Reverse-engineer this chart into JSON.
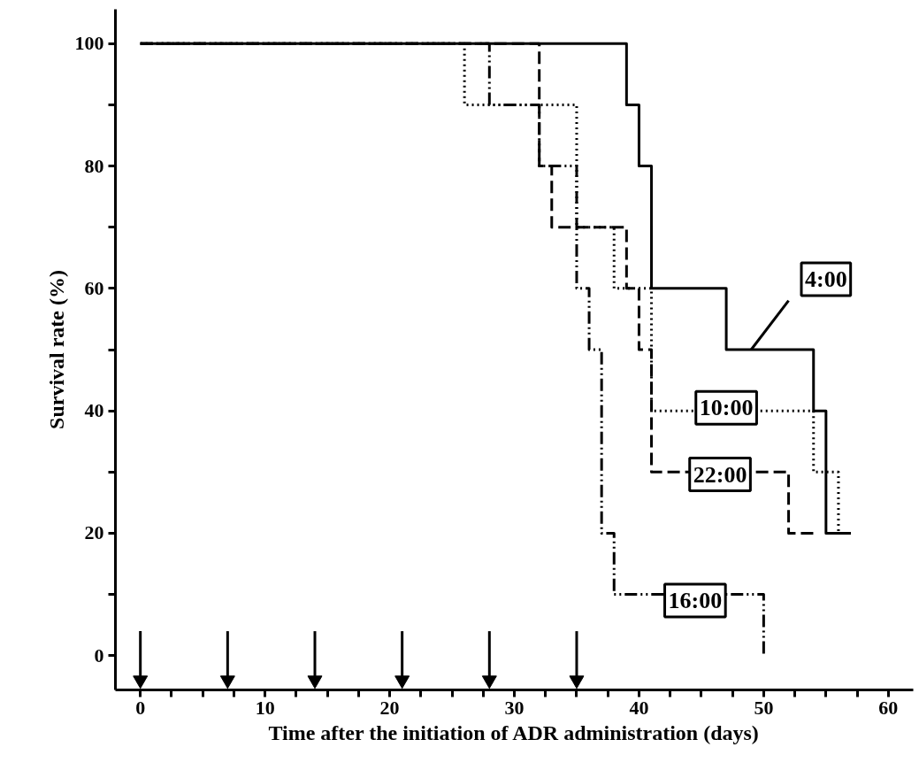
{
  "chart_data": {
    "type": "step",
    "xlabel": "Time after the initiation of ADR administration (days)",
    "ylabel": "Survival rate (%)",
    "xlim": [
      -2,
      62
    ],
    "ylim": [
      -5.6,
      105.6
    ],
    "xticks": [
      0,
      {
        "value": 2.5,
        "label": null
      },
      {
        "value": 5,
        "label": null
      },
      {
        "value": 7.5,
        "label": null
      },
      10,
      {
        "value": 12.5,
        "label": null
      },
      {
        "value": 15,
        "label": null
      },
      {
        "value": 17.5,
        "label": null
      },
      20,
      {
        "value": 22.5,
        "label": null
      },
      {
        "value": 25,
        "label": null
      },
      {
        "value": 27.5,
        "label": null
      },
      30,
      {
        "value": 32.5,
        "label": null
      },
      {
        "value": 35,
        "label": null
      },
      {
        "value": 37.5,
        "label": null
      },
      40,
      {
        "value": 42.5,
        "label": null
      },
      {
        "value": 45,
        "label": null
      },
      {
        "value": 47.5,
        "label": null
      },
      50,
      {
        "value": 52.5,
        "label": null
      },
      {
        "value": 55,
        "label": null
      },
      {
        "value": 57.5,
        "label": null
      },
      60
    ],
    "yticks": [
      0,
      {
        "value": 10,
        "label": null
      },
      20,
      {
        "value": 30,
        "label": null
      },
      40,
      {
        "value": 50,
        "label": null
      },
      60,
      {
        "value": 70,
        "label": null
      },
      80,
      {
        "value": 90,
        "label": null
      },
      100
    ],
    "grid": false,
    "series": [
      {
        "name": "4:00",
        "color": "#000000",
        "line_style": "solid",
        "x": [
          0,
          39,
          40,
          41,
          47,
          54,
          55,
          57
        ],
        "values": [
          100,
          90,
          80,
          60,
          50,
          40,
          20,
          20
        ]
      },
      {
        "name": "10:00",
        "color": "#000000",
        "line_style": "dotted",
        "x": [
          0,
          26,
          35,
          38,
          41,
          54,
          56
        ],
        "values": [
          100,
          90,
          70,
          60,
          40,
          30,
          20
        ]
      },
      {
        "name": "22:00",
        "color": "#000000",
        "line_style": "dashed",
        "x": [
          0,
          32,
          33,
          39,
          40,
          41,
          52,
          54
        ],
        "values": [
          100,
          80,
          70,
          60,
          50,
          30,
          20,
          20
        ]
      },
      {
        "name": "16:00",
        "color": "#000000",
        "line_style": "dashdot",
        "x": [
          0,
          28,
          32,
          35,
          36,
          37,
          38,
          50
        ],
        "values": [
          100,
          90,
          80,
          60,
          50,
          20,
          10,
          0
        ]
      },
      {
        "type": "scatter",
        "marker": "triangle",
        "color": "#000000",
        "x": [
          0,
          7,
          14,
          21,
          28,
          35
        ],
        "values": [
          -4,
          -4,
          -4,
          -4,
          -4,
          -4
        ],
        "errors": [
          [
            -4,
            4
          ],
          [
            -4,
            4
          ],
          [
            -4,
            4
          ],
          [
            -4,
            4
          ],
          [
            -4,
            4
          ],
          [
            -4,
            4
          ]
        ]
      }
    ]
  }
}
